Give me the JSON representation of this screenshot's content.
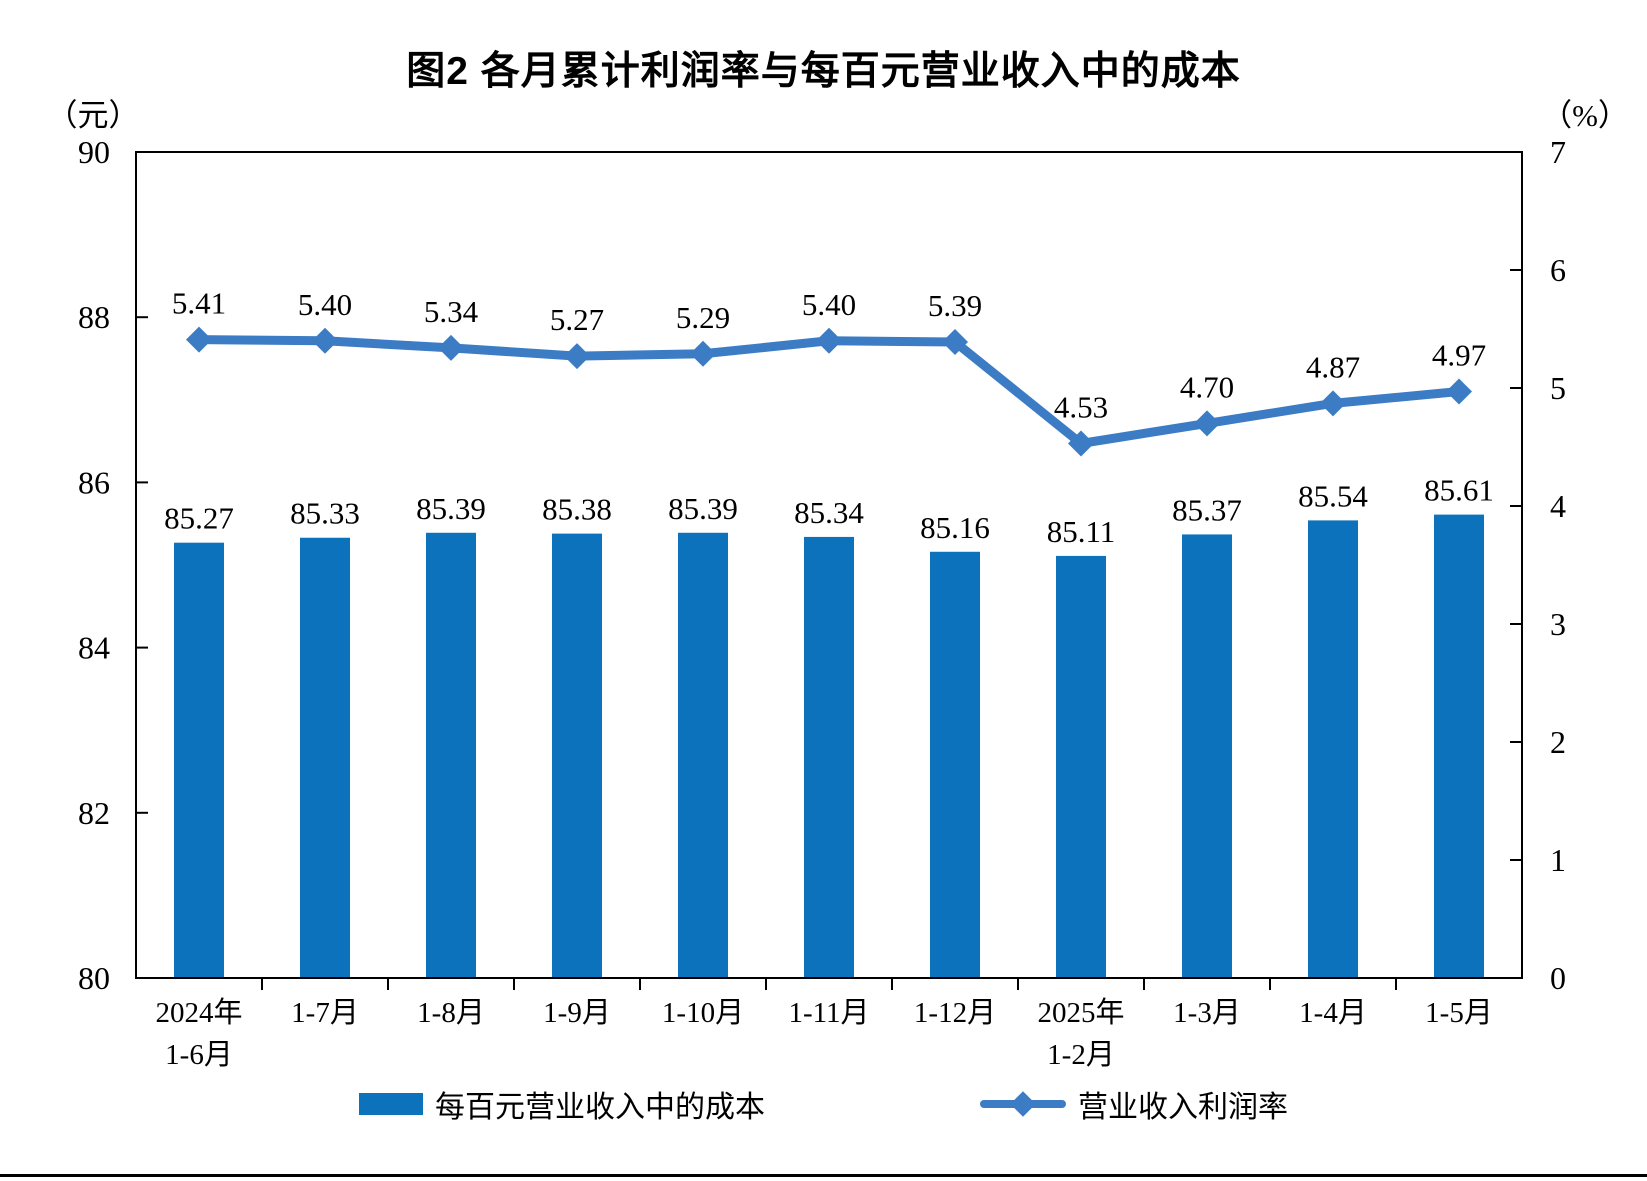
{
  "title": "图2 各月累计利润率与每百元营业收入中的成本",
  "left_unit": "（元）",
  "right_unit": "（%）",
  "legend": {
    "bars": "每百元营业收入中的成本",
    "line": "营业收入利润率"
  },
  "chart_data": {
    "type": "bar",
    "subtype": "bar+line dual axis",
    "title": "图2 各月累计利润率与每百元营业收入中的成本",
    "categories": [
      [
        "2024年",
        "1-6月"
      ],
      [
        "1-7月"
      ],
      [
        "1-8月"
      ],
      [
        "1-9月"
      ],
      [
        "1-10月"
      ],
      [
        "1-11月"
      ],
      [
        "1-12月"
      ],
      [
        "2025年",
        "1-2月"
      ],
      [
        "1-3月"
      ],
      [
        "1-4月"
      ],
      [
        "1-5月"
      ]
    ],
    "series": [
      {
        "name": "每百元营业收入中的成本",
        "type": "bar",
        "axis": "left",
        "unit": "元",
        "values": [
          85.27,
          85.33,
          85.39,
          85.38,
          85.39,
          85.34,
          85.16,
          85.11,
          85.37,
          85.54,
          85.61
        ]
      },
      {
        "name": "营业收入利润率",
        "type": "line",
        "axis": "right",
        "unit": "%",
        "marker": "diamond",
        "values": [
          5.41,
          5.4,
          5.34,
          5.27,
          5.29,
          5.4,
          5.39,
          4.53,
          4.7,
          4.87,
          4.97
        ]
      }
    ],
    "left_axis": {
      "label": "（元）",
      "min": 80,
      "max": 90,
      "ticks": [
        80,
        82,
        84,
        86,
        88,
        90
      ]
    },
    "right_axis": {
      "label": "（%）",
      "min": 0,
      "max": 7,
      "ticks": [
        0,
        1,
        2,
        3,
        4,
        5,
        6,
        7
      ]
    },
    "grid": false,
    "legend_position": "bottom",
    "colors": {
      "bar": "#0C72BC",
      "line": "#3C7CC4",
      "axis": "#000000"
    }
  }
}
